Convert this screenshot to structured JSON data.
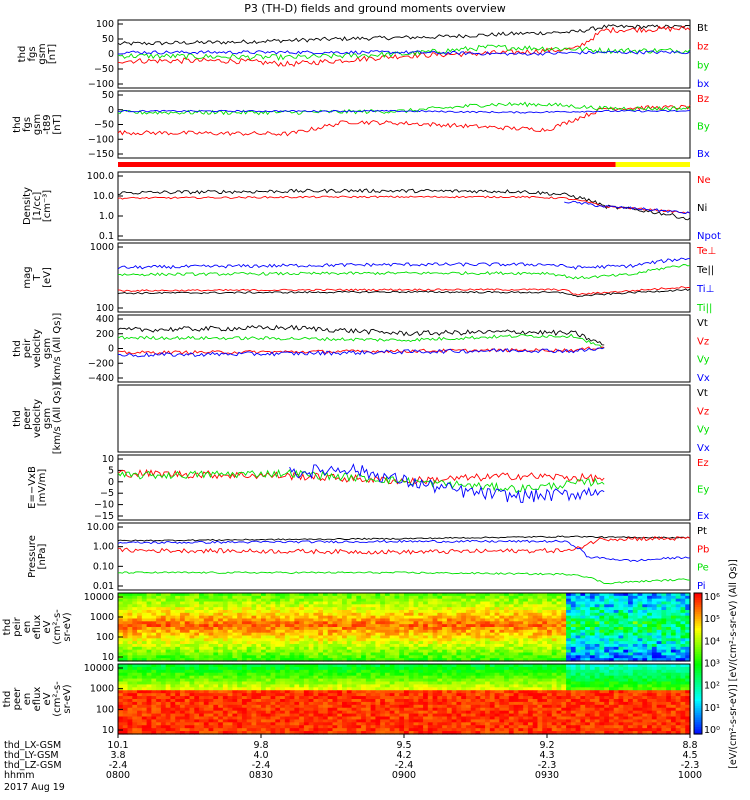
{
  "chart_data": {
    "type": "line",
    "title": "P3 (TH-D) fields and ground moments overview",
    "x_axis": {
      "rows": [
        {
          "label": "thd_LX-GSM",
          "values": [
            "10.1",
            "9.8",
            "9.5",
            "9.2",
            "8.8"
          ]
        },
        {
          "label": "thd_LY-GSM",
          "values": [
            "3.8",
            "4.0",
            "4.2",
            "4.3",
            "4.5"
          ]
        },
        {
          "label": "thd_LZ-GSM",
          "values": [
            "-2.4",
            "-2.4",
            "-2.4",
            "-2.3",
            "-2.3"
          ]
        },
        {
          "label": "hhmm",
          "values": [
            "0800",
            "0830",
            "0900",
            "0930",
            "1000"
          ]
        }
      ],
      "date": "2017 Aug 19"
    },
    "colors": {
      "black": "#000000",
      "red": "#ff0000",
      "green": "#00e000",
      "blue": "#0000ff",
      "yellow": "#ffff00"
    },
    "panels": [
      {
        "id": "fgs-gsm",
        "ylabel": [
          "thd",
          "fgs",
          "gsm",
          "[nT]"
        ],
        "yticks": [
          "100",
          "50",
          "0",
          "−50",
          "−100"
        ],
        "ylim": [
          -100,
          100
        ],
        "legend": [
          {
            "name": "Bt",
            "color": "black"
          },
          {
            "name": "bz",
            "color": "red"
          },
          {
            "name": "by",
            "color": "green"
          },
          {
            "name": "bx",
            "color": "blue"
          }
        ],
        "series": [
          {
            "name": "Bt",
            "color": "black",
            "t": [
              0,
              0.2,
              0.4,
              0.55,
              0.7,
              0.8,
              0.85,
              0.9,
              1
            ],
            "y": [
              30,
              35,
              45,
              50,
              60,
              65,
              80,
              80,
              80
            ],
            "noise": 6
          },
          {
            "name": "bz",
            "color": "red",
            "t": [
              0,
              0.2,
              0.3,
              0.5,
              0.7,
              0.8,
              0.85,
              1
            ],
            "y": [
              -20,
              -20,
              -30,
              -5,
              5,
              15,
              70,
              75
            ],
            "noise": 8
          },
          {
            "name": "by",
            "color": "green",
            "t": [
              0,
              0.3,
              0.5,
              0.65,
              0.8,
              0.85,
              1
            ],
            "y": [
              -5,
              -10,
              0,
              20,
              15,
              10,
              10
            ],
            "noise": 8
          },
          {
            "name": "bx",
            "color": "blue",
            "t": [
              0,
              0.3,
              0.5,
              0.7,
              0.85,
              1
            ],
            "y": [
              5,
              5,
              5,
              0,
              5,
              5
            ],
            "noise": 5
          }
        ]
      },
      {
        "id": "fgs-gsm-t89",
        "ylabel": [
          "thd",
          "fgs",
          "gsm",
          "-t89",
          "[nT]"
        ],
        "yticks": [
          "50",
          "0",
          "−50",
          "−100",
          "−150"
        ],
        "ylim": [
          -175,
          75
        ],
        "legend": [
          {
            "name": "Bz",
            "color": "red"
          },
          {
            "name": "By",
            "color": "green"
          },
          {
            "name": "Bx",
            "color": "blue"
          }
        ],
        "series": [
          {
            "name": "Bz",
            "color": "red",
            "t": [
              0,
              0.3,
              0.4,
              0.5,
              0.65,
              0.75,
              0.85,
              1
            ],
            "y": [
              -80,
              -85,
              -40,
              -45,
              -60,
              -70,
              10,
              15
            ],
            "noise": 8
          },
          {
            "name": "By",
            "color": "green",
            "t": [
              0,
              0.3,
              0.5,
              0.65,
              0.75,
              0.85,
              1
            ],
            "y": [
              -5,
              -5,
              0,
              25,
              25,
              10,
              10
            ],
            "noise": 8
          },
          {
            "name": "Bx",
            "color": "blue",
            "t": [
              0,
              0.5,
              0.7,
              0.85,
              1
            ],
            "y": [
              0,
              0,
              -5,
              0,
              0
            ],
            "noise": 3
          }
        ]
      },
      {
        "id": "density",
        "ylabel": [
          "Density",
          "[1/cc]",
          "[cm⁻³]"
        ],
        "yticks": [
          "100.0",
          "10.0",
          "1.0",
          "0.1"
        ],
        "ylim": [
          0.1,
          100
        ],
        "log": true,
        "legend": [
          {
            "name": "Ne",
            "color": "red"
          },
          {
            "name": "Ni",
            "color": "black"
          },
          {
            "name": "Npot",
            "color": "blue"
          }
        ],
        "series": [
          {
            "name": "Ni",
            "color": "black",
            "t": [
              0,
              0.4,
              0.7,
              0.78,
              0.85,
              0.95,
              1
            ],
            "y": [
              12,
              15,
              14,
              10,
              3,
              1.5,
              0.8
            ],
            "noise": 0.08
          },
          {
            "name": "Ne",
            "color": "red",
            "t": [
              0,
              0.4,
              0.7,
              0.78,
              0.85,
              0.95,
              1
            ],
            "y": [
              7,
              8,
              8,
              7,
              3,
              2,
              1.5
            ],
            "noise": 0.04
          },
          {
            "name": "Npot",
            "color": "blue",
            "t": [
              0.78,
              0.85,
              0.95,
              1
            ],
            "y": [
              5,
              3,
              2,
              1.5
            ],
            "noise": 0.06
          }
        ]
      },
      {
        "id": "temperature",
        "ylabel": [
          "mag",
          "T",
          "[eV]"
        ],
        "yticks": [
          "1000",
          "100"
        ],
        "ylim": [
          20,
          5000
        ],
        "log": true,
        "legend": [
          {
            "name": "Te⊥",
            "color": "red"
          },
          {
            "name": "Te||",
            "color": "black"
          },
          {
            "name": "Ti⊥",
            "color": "blue"
          },
          {
            "name": "Ti||",
            "color": "green"
          }
        ],
        "series": [
          {
            "name": "Ti⊥",
            "color": "blue",
            "t": [
              0,
              0.5,
              0.75,
              0.8,
              0.9,
              1
            ],
            "y": [
              700,
              900,
              900,
              700,
              800,
              1500
            ],
            "noise": 0.06
          },
          {
            "name": "Ti||",
            "color": "green",
            "t": [
              0,
              0.5,
              0.75,
              0.8,
              0.9,
              1
            ],
            "y": [
              400,
              450,
              450,
              300,
              400,
              900
            ],
            "noise": 0.05
          },
          {
            "name": "Te⊥",
            "color": "red",
            "t": [
              0,
              0.5,
              0.78,
              0.8,
              0.9,
              1
            ],
            "y": [
              110,
              120,
              120,
              80,
              110,
              150
            ],
            "noise": 0.03
          },
          {
            "name": "Te||",
            "color": "black",
            "t": [
              0,
              0.5,
              0.78,
              0.8,
              0.9,
              1
            ],
            "y": [
              90,
              100,
              95,
              70,
              95,
              120
            ],
            "noise": 0.03
          }
        ]
      },
      {
        "id": "peir-velocity",
        "ylabel": [
          "thd",
          "peir",
          "velocity",
          "gsm",
          "[km/s (All Qs)]"
        ],
        "yticks": [
          "400",
          "200",
          "0",
          "−200",
          "−400"
        ],
        "ylim": [
          -400,
          400
        ],
        "legend": [
          {
            "name": "Vt",
            "color": "black"
          },
          {
            "name": "Vz",
            "color": "red"
          },
          {
            "name": "Vy",
            "color": "green"
          },
          {
            "name": "Vx",
            "color": "blue"
          }
        ],
        "series": [
          {
            "name": "Vt",
            "color": "black",
            "t": [
              0,
              0.3,
              0.5,
              0.7,
              0.8,
              0.85
            ],
            "y": [
              220,
              250,
              180,
              200,
              180,
              40
            ],
            "noise": 30
          },
          {
            "name": "Vy",
            "color": "green",
            "t": [
              0,
              0.3,
              0.5,
              0.7,
              0.8,
              0.85
            ],
            "y": [
              130,
              120,
              100,
              150,
              150,
              0
            ],
            "noise": 20
          },
          {
            "name": "Vz",
            "color": "red",
            "t": [
              0,
              0.3,
              0.5,
              0.7,
              0.8,
              0.85
            ],
            "y": [
              -50,
              -40,
              -30,
              -20,
              -20,
              20
            ],
            "noise": 20
          },
          {
            "name": "Vx",
            "color": "blue",
            "t": [
              0,
              0.3,
              0.5,
              0.7,
              0.8,
              0.85
            ],
            "y": [
              -80,
              -60,
              -40,
              -20,
              -30,
              0
            ],
            "noise": 25
          }
        ]
      },
      {
        "id": "peer-velocity",
        "ylabel": [
          "thd",
          "peer",
          "velocity",
          "gsm",
          "[km/s (All Qs)]"
        ],
        "yticks": [],
        "ylim": [
          0,
          1
        ],
        "legend": [
          {
            "name": "Vt",
            "color": "black"
          },
          {
            "name": "Vz",
            "color": "red"
          },
          {
            "name": "Vy",
            "color": "green"
          },
          {
            "name": "Vx",
            "color": "blue"
          }
        ],
        "series": []
      },
      {
        "id": "efield",
        "ylabel": [
          "E=−VxB",
          "[mV/m]"
        ],
        "yticks": [
          "10",
          "5",
          "0",
          "−5",
          "−10",
          "−15"
        ],
        "ylim": [
          -15,
          10
        ],
        "legend": [
          {
            "name": "Ez",
            "color": "red"
          },
          {
            "name": "Ey",
            "color": "green"
          },
          {
            "name": "Ex",
            "color": "blue"
          }
        ],
        "series": [
          {
            "name": "Ez",
            "color": "red",
            "t": [
              0,
              0.3,
              0.5,
              0.7,
              0.85
            ],
            "y": [
              3,
              2,
              0,
              2,
              1
            ],
            "noise": 1.5
          },
          {
            "name": "Ey",
            "color": "green",
            "t": [
              0,
              0.3,
              0.5,
              0.7,
              0.85
            ],
            "y": [
              2,
              3,
              0,
              -3,
              0
            ],
            "noise": 1.5
          },
          {
            "name": "Ex",
            "color": "blue",
            "t": [
              0.3,
              0.4,
              0.5,
              0.6,
              0.7,
              0.8,
              0.85
            ],
            "y": [
              3,
              5,
              0,
              -4,
              -6,
              -5,
              -3
            ],
            "noise": 2.5
          }
        ]
      },
      {
        "id": "pressure",
        "ylabel": [
          "Pressure",
          "[nPa]"
        ],
        "yticks": [
          "10.00",
          "1.00",
          "0.10",
          "0.01"
        ],
        "ylim": [
          0.01,
          10
        ],
        "log": true,
        "legend": [
          {
            "name": "Pt",
            "color": "black"
          },
          {
            "name": "Pb",
            "color": "red"
          },
          {
            "name": "Pe",
            "color": "green"
          },
          {
            "name": "Pi",
            "color": "blue"
          }
        ],
        "series": [
          {
            "name": "Pt",
            "color": "black",
            "t": [
              0,
              0.5,
              0.8,
              0.85,
              1
            ],
            "y": [
              1.6,
              2.0,
              2.5,
              2.3,
              2.2
            ],
            "noise": 0.03
          },
          {
            "name": "Pi",
            "color": "blue",
            "t": [
              0,
              0.5,
              0.78,
              0.82,
              0.9,
              1
            ],
            "y": [
              1.3,
              1.5,
              1.5,
              0.3,
              0.2,
              0.3
            ],
            "noise": 0.05
          },
          {
            "name": "Pb",
            "color": "red",
            "t": [
              0,
              0.5,
              0.8,
              0.85,
              1
            ],
            "y": [
              0.6,
              0.5,
              0.6,
              2.0,
              2.0
            ],
            "noise": 0.1
          },
          {
            "name": "Pe",
            "color": "green",
            "t": [
              0,
              0.5,
              0.8,
              0.85,
              1
            ],
            "y": [
              0.06,
              0.06,
              0.05,
              0.02,
              0.03
            ],
            "noise": 0.04
          }
        ]
      },
      {
        "id": "peir-eflux",
        "ylabel": [
          "thd",
          "peir",
          "en",
          "eflux",
          "eV",
          "(cm²-s-",
          "sr-eV)"
        ],
        "yticks": [
          "10000",
          "1000",
          "100",
          "10"
        ],
        "type": "heatmap"
      },
      {
        "id": "peer-eflux",
        "ylabel": [
          "thd",
          "peer",
          "en",
          "eflux",
          "eV",
          "(cm²-s-",
          "sr-eV)"
        ],
        "yticks": [
          "10000",
          "1000",
          "100",
          "10"
        ],
        "type": "heatmap"
      }
    ],
    "colorbar": {
      "ticks": [
        "10⁶",
        "10⁵",
        "10⁴",
        "10³",
        "10²",
        "10¹",
        "10⁰"
      ],
      "label": "[eV/(cm²-s-sr-eV)] [eV/(cm²-s-sr-eV) (All Qs)]"
    }
  }
}
